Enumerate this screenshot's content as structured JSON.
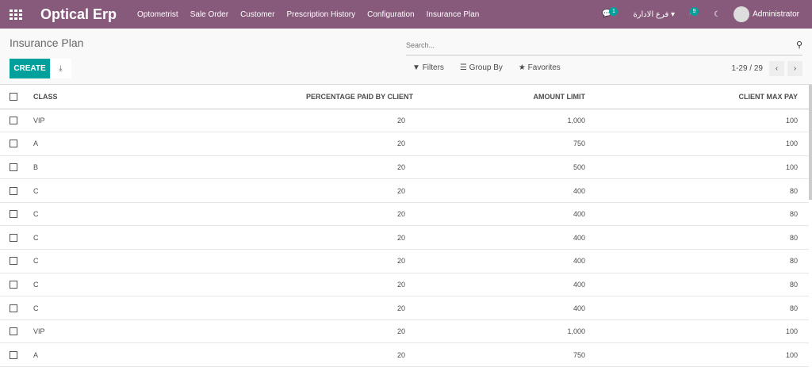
{
  "nav": {
    "brand": "Optical Erp",
    "menu": [
      "Optometrist",
      "Sale Order",
      "Customer",
      "Prescription History",
      "Configuration",
      "Insurance Plan"
    ],
    "messages_count": "1",
    "branch": "فرع الادارة",
    "activities_count": "9",
    "user": "Administrator"
  },
  "control": {
    "title": "Insurance Plan",
    "create": "CREATE",
    "search_placeholder": "Search...",
    "filters": "Filters",
    "group_by": "Group By",
    "favorites": "Favorites",
    "pager": "1-29 / 29"
  },
  "table": {
    "headers": [
      "Class",
      "Percentage Paid By Client",
      "Amount Limit",
      "Client Max Pay"
    ],
    "rows": [
      [
        "VIP",
        "20",
        "1,000",
        "100"
      ],
      [
        "A",
        "20",
        "750",
        "100"
      ],
      [
        "B",
        "20",
        "500",
        "100"
      ],
      [
        "C",
        "20",
        "400",
        "80"
      ],
      [
        "C",
        "20",
        "400",
        "80"
      ],
      [
        "C",
        "20",
        "400",
        "80"
      ],
      [
        "C",
        "20",
        "400",
        "80"
      ],
      [
        "C",
        "20",
        "400",
        "80"
      ],
      [
        "C",
        "20",
        "400",
        "80"
      ],
      [
        "VIP",
        "20",
        "1,000",
        "100"
      ],
      [
        "A",
        "20",
        "750",
        "100"
      ]
    ]
  },
  "colors": {
    "brand": "#875a7b",
    "accent": "#00a09d"
  }
}
